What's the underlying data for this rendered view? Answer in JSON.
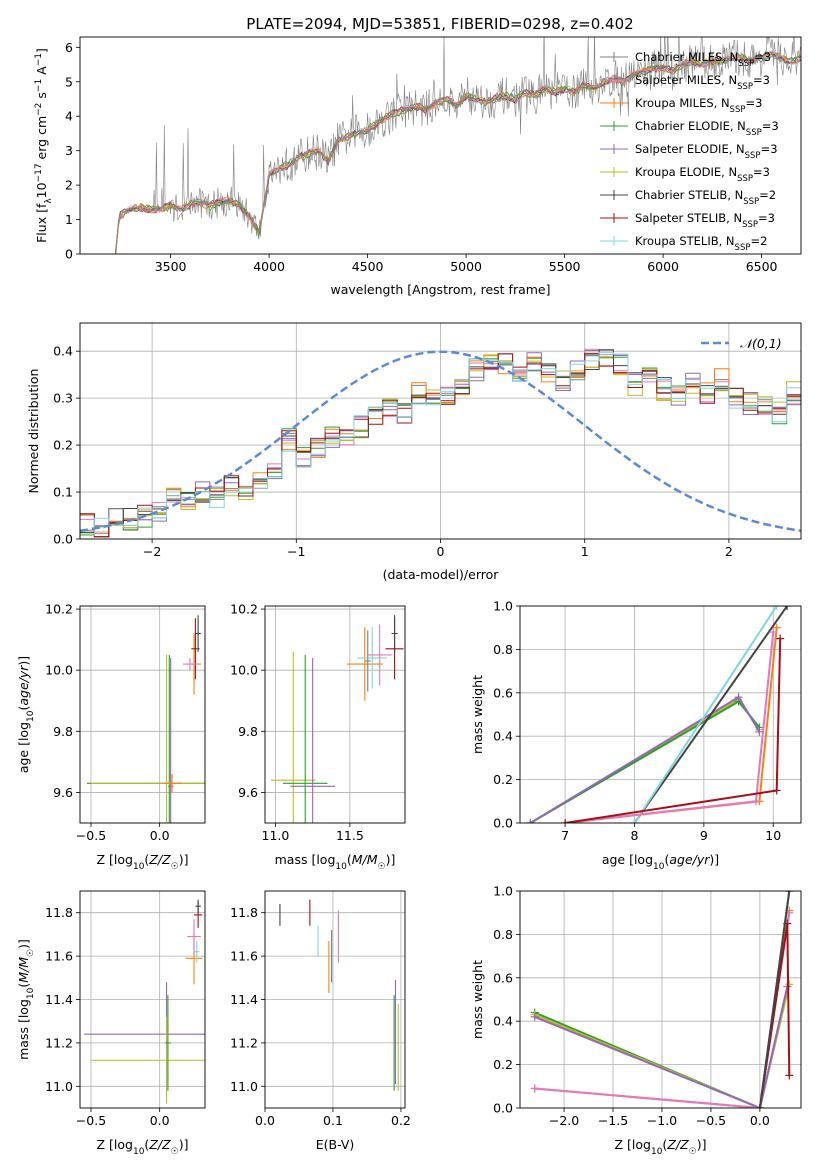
{
  "title": "PLATE=2094, MJD=53851, FIBERID=0298, z=0.402",
  "colors": {
    "Chabrier MILES": "#7f7f7f",
    "Salpeter MILES": "#e377c2",
    "Kroupa MILES": "#ff7f0e",
    "Chabrier ELODIE": "#2ca02c",
    "Salpeter ELODIE": "#9467bd",
    "Kroupa ELODIE": "#bcbd22",
    "Chabrier STELIB": "#444444",
    "Salpeter STELIB": "#a50f15",
    "Kroupa STELIB": "#7fd6e0",
    "normal": "#5b8bd6",
    "data": "#808080"
  },
  "chart_data": [
    {
      "id": "spectrum",
      "type": "line",
      "title": "PLATE=2094, MJD=53851, FIBERID=0298, z=0.402",
      "xlabel": "wavelength [Angstrom, rest frame]",
      "ylabel": "Flux [f_λ10^-17 erg cm^-2 s^-1 A^-1]",
      "xlim": [
        3040,
        6700
      ],
      "ylim": [
        0,
        6.3
      ],
      "xticks": [
        3500,
        4000,
        4500,
        5000,
        5500,
        6000,
        6500
      ],
      "yticks": [
        0,
        1,
        2,
        3,
        4,
        5,
        6
      ],
      "legend_position": "top-right",
      "legend": [
        "Chabrier MILES, N_SSP=3",
        "Salpeter MILES, N_SSP=3",
        "Kroupa MILES, N_SSP=3",
        "Chabrier ELODIE, N_SSP=3",
        "Salpeter ELODIE, N_SSP=3",
        "Kroupa ELODIE, N_SSP=3",
        "Chabrier STELIB, N_SSP=2",
        "Salpeter STELIB, N_SSP=3",
        "Kroupa STELIB, N_SSP=2"
      ],
      "model_continuum": {
        "x": [
          3220,
          3240,
          3300,
          3350,
          3400,
          3450,
          3500,
          3550,
          3600,
          3650,
          3700,
          3750,
          3800,
          3850,
          3900,
          3950,
          4000,
          4050,
          4100,
          4150,
          4200,
          4250,
          4300,
          4350,
          4400,
          4450,
          4500,
          4550,
          4600,
          4650,
          4700,
          4750,
          4800,
          4850,
          4900,
          4950,
          5000,
          5050,
          5100,
          5150,
          5200,
          5250,
          5300,
          5350,
          5400,
          5450,
          5500,
          5550,
          5600,
          5650,
          5700,
          5750,
          5800,
          5850,
          5900,
          5950,
          6000,
          6050,
          6100,
          6150,
          6200,
          6250,
          6300,
          6350,
          6400,
          6450,
          6500,
          6550,
          6600,
          6650,
          6700
        ],
        "y": [
          0,
          1.1,
          1.3,
          1.35,
          1.3,
          1.3,
          1.4,
          1.3,
          1.45,
          1.5,
          1.4,
          1.5,
          1.55,
          1.4,
          1.1,
          0.6,
          2.3,
          2.5,
          2.6,
          2.8,
          2.9,
          3.0,
          2.7,
          3.3,
          3.4,
          3.5,
          3.6,
          3.8,
          4.0,
          4.1,
          4.2,
          4.3,
          4.2,
          4.4,
          4.5,
          4.3,
          4.6,
          4.5,
          4.4,
          4.5,
          4.6,
          4.5,
          4.7,
          4.6,
          4.8,
          4.7,
          4.8,
          4.7,
          4.9,
          4.8,
          5.0,
          5.1,
          5.0,
          5.2,
          5.3,
          5.4,
          5.4,
          5.3,
          5.5,
          5.6,
          5.5,
          5.6,
          5.6,
          5.7,
          5.7,
          5.6,
          5.7,
          5.8,
          5.7,
          5.6,
          5.7
        ]
      }
    },
    {
      "id": "residuals",
      "type": "line",
      "xlabel": "(data-model)/error",
      "ylabel": "Normed distribution",
      "xlim": [
        -2.5,
        2.5
      ],
      "ylim": [
        0,
        0.46
      ],
      "xticks": [
        -2,
        -1,
        0,
        1,
        2
      ],
      "yticks": [
        0.0,
        0.1,
        0.2,
        0.3,
        0.4
      ],
      "legend": [
        "𝒩(0,1)"
      ],
      "legend_position": "top-right",
      "grid": true,
      "normal_curve": {
        "mu": 0,
        "sigma": 1
      },
      "histogram_x_start": -2.5,
      "histogram_bin_width": 0.1,
      "histogram_representative": [
        0.03,
        0.02,
        0.05,
        0.04,
        0.05,
        0.06,
        0.09,
        0.08,
        0.1,
        0.09,
        0.11,
        0.1,
        0.13,
        0.15,
        0.21,
        0.17,
        0.19,
        0.22,
        0.21,
        0.24,
        0.26,
        0.28,
        0.27,
        0.31,
        0.3,
        0.3,
        0.33,
        0.36,
        0.38,
        0.37,
        0.36,
        0.38,
        0.35,
        0.34,
        0.36,
        0.38,
        0.39,
        0.37,
        0.33,
        0.34,
        0.32,
        0.31,
        0.33,
        0.31,
        0.34,
        0.3,
        0.29,
        0.28,
        0.27,
        0.31,
        0.29,
        0.26,
        0.25,
        0.22,
        0.2,
        0.23,
        0.2,
        0.18,
        0.16,
        0.15,
        0.17,
        0.14,
        0.13,
        0.12,
        0.1,
        0.11,
        0.09,
        0.08,
        0.07,
        0.06,
        0.06,
        0.05,
        0.05,
        0.04,
        0.05
      ]
    },
    {
      "id": "age-vs-Z",
      "type": "scatter",
      "xlabel": "Z [log10(Z/Z☉)]",
      "ylabel": "age [log10(age/yr)]",
      "xlim": [
        -0.58,
        0.33
      ],
      "ylim": [
        9.5,
        10.21
      ],
      "xticks": [
        -0.5,
        0.0,
        0.5
      ],
      "yticks": [
        9.6,
        9.8,
        10.0,
        10.2
      ],
      "grid": true
    },
    {
      "id": "age-vs-mass",
      "type": "scatter",
      "xlabel": "mass [log10(M/M☉)]",
      "ylabel": "",
      "xlim": [
        10.93,
        11.87
      ],
      "ylim": [
        9.5,
        10.21
      ],
      "xticks": [
        11.0,
        11.5
      ],
      "yticks": [
        9.6,
        9.8,
        10.0,
        10.2
      ],
      "grid": true
    },
    {
      "id": "weight-vs-age",
      "type": "line",
      "xlabel": "age [log10(age/yr)]",
      "ylabel": "mass weight",
      "xlim": [
        6.35,
        10.4
      ],
      "ylim": [
        0,
        1
      ],
      "xticks": [
        7,
        8,
        9,
        10
      ],
      "yticks": [
        0.0,
        0.2,
        0.4,
        0.6,
        0.8,
        1.0
      ],
      "grid": true
    },
    {
      "id": "mass-vs-Z",
      "type": "scatter",
      "xlabel": "Z [log10(Z/Z☉)]",
      "ylabel": "mass [log10(M/M☉)]",
      "xlim": [
        -0.58,
        0.33
      ],
      "ylim": [
        10.9,
        11.9
      ],
      "xticks": [
        -0.5,
        0.0,
        0.5
      ],
      "yticks": [
        11.0,
        11.2,
        11.4,
        11.6,
        11.8
      ],
      "grid": true
    },
    {
      "id": "mass-vs-ebv",
      "type": "scatter",
      "xlabel": "E(B-V)",
      "ylabel": "",
      "xlim": [
        0.0,
        0.206
      ],
      "ylim": [
        10.9,
        11.9
      ],
      "xticks": [
        0.0,
        0.1,
        0.2
      ],
      "yticks": [
        11.0,
        11.2,
        11.4,
        11.6,
        11.8
      ],
      "grid": true
    },
    {
      "id": "weight-vs-Z",
      "type": "line",
      "xlabel": "Z [log10(Z/Z☉)]",
      "ylabel": "mass weight",
      "xlim": [
        -2.45,
        0.42
      ],
      "ylim": [
        0,
        1
      ],
      "xticks": [
        -2.0,
        -1.5,
        -1.0,
        -0.5,
        0.0
      ],
      "yticks": [
        0.0,
        0.2,
        0.4,
        0.6,
        0.8,
        1.0
      ],
      "grid": true
    }
  ]
}
